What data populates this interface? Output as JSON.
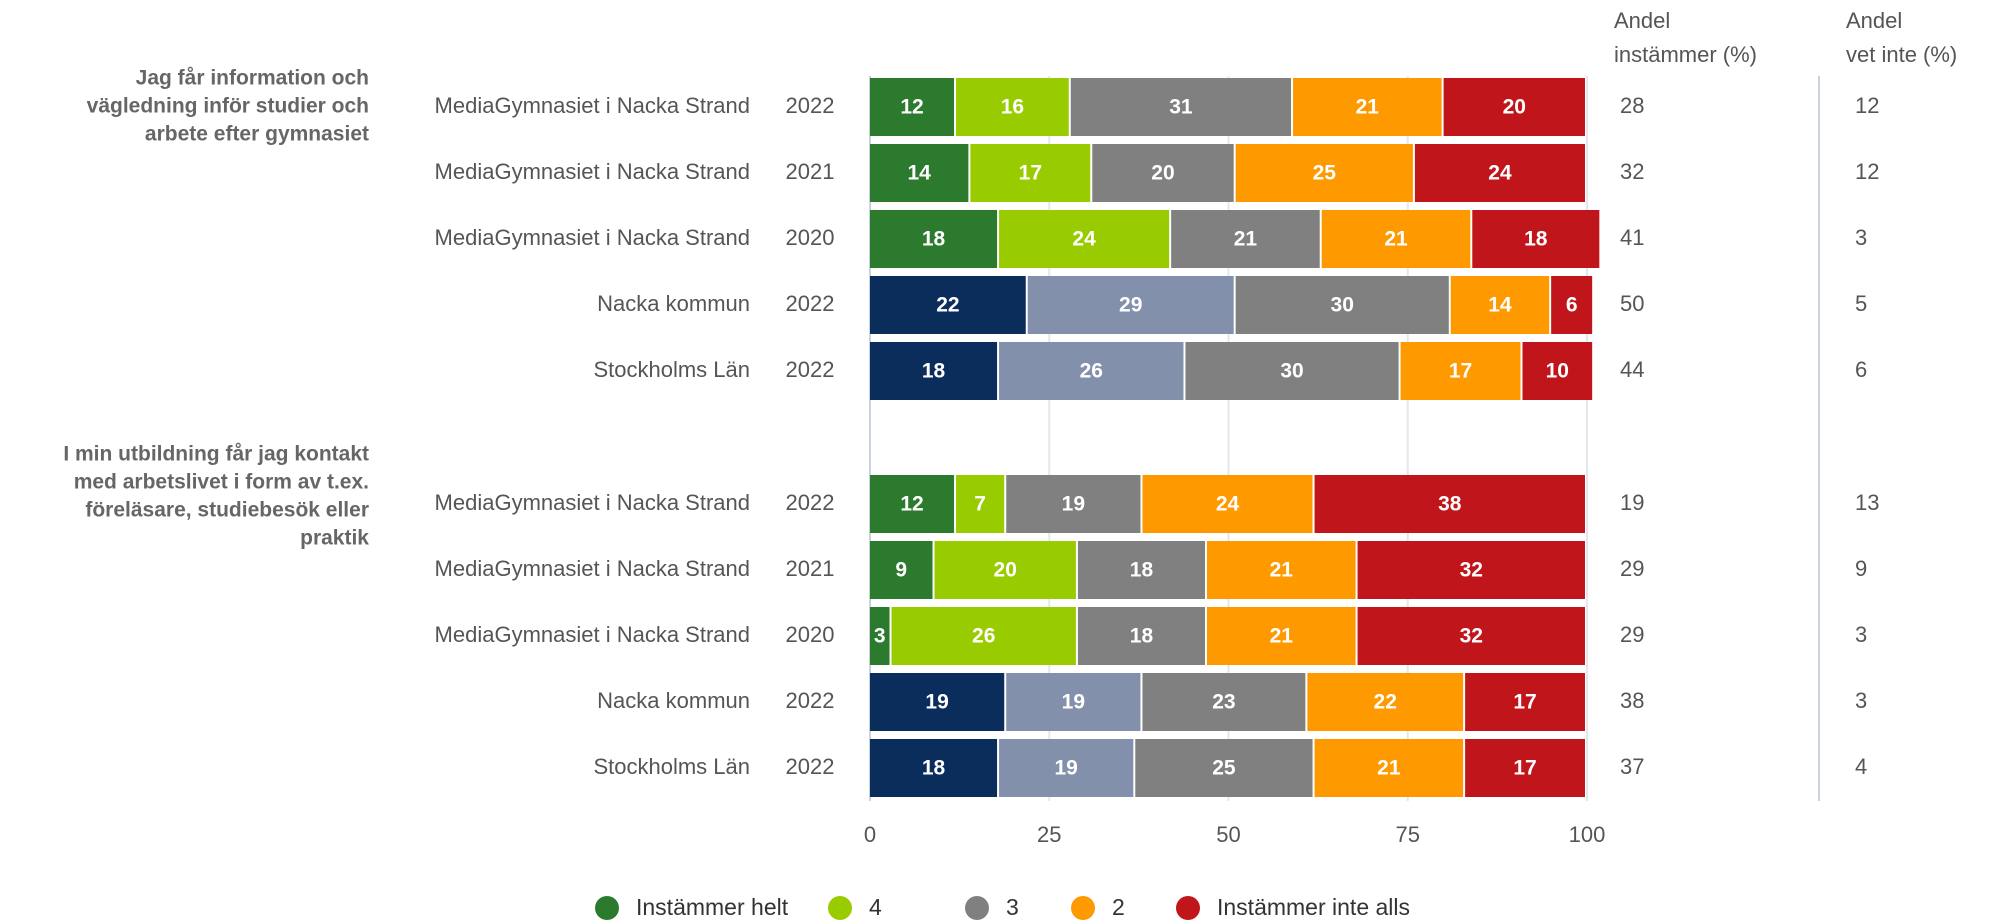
{
  "chart_data": {
    "type": "stacked-bar",
    "xlim": [
      0,
      100
    ],
    "xticks": [
      0,
      25,
      50,
      75,
      100
    ],
    "grid": true,
    "column_headers": [
      [
        "Andel",
        "instämmer (%)"
      ],
      [
        "Andel",
        "vet inte (%)"
      ]
    ],
    "series": [
      {
        "name": "Instämmer helt",
        "color": "#2b7a2e",
        "comparison_color": "#0b2d5c"
      },
      {
        "name": "4",
        "color": "#99cc00",
        "comparison_color": "#8390ac"
      },
      {
        "name": "3",
        "color": "#808080",
        "comparison_color": "#808080"
      },
      {
        "name": "2",
        "color": "#ff9900",
        "comparison_color": "#ff9900"
      },
      {
        "name": "Instämmer inte alls",
        "color": "#c0161b",
        "comparison_color": "#c0161b"
      }
    ],
    "groups": [
      {
        "label_lines": [
          "Jag får information och",
          "vägledning inför studier och",
          "arbete efter gymnasiet"
        ],
        "rows": [
          {
            "name": "MediaGymnasiet i Nacka Strand",
            "year": "2022",
            "comparison": false,
            "values": [
              12,
              16,
              31,
              21,
              20
            ],
            "share_agree": 28,
            "share_unknown": 12
          },
          {
            "name": "MediaGymnasiet i Nacka Strand",
            "year": "2021",
            "comparison": false,
            "values": [
              14,
              17,
              20,
              25,
              24
            ],
            "share_agree": 32,
            "share_unknown": 12
          },
          {
            "name": "MediaGymnasiet i Nacka Strand",
            "year": "2020",
            "comparison": false,
            "values": [
              18,
              24,
              21,
              21,
              18
            ],
            "share_agree": 41,
            "share_unknown": 3
          },
          {
            "name": "Nacka kommun",
            "year": "2022",
            "comparison": true,
            "values": [
              22,
              29,
              30,
              14,
              6
            ],
            "share_agree": 50,
            "share_unknown": 5
          },
          {
            "name": "Stockholms Län",
            "year": "2022",
            "comparison": true,
            "values": [
              18,
              26,
              30,
              17,
              10
            ],
            "share_agree": 44,
            "share_unknown": 6
          }
        ]
      },
      {
        "label_lines": [
          "I min utbildning får jag kontakt",
          "med arbetslivet i form av t.ex.",
          "föreläsare, studiebesök eller",
          "praktik"
        ],
        "rows": [
          {
            "name": "MediaGymnasiet i Nacka Strand",
            "year": "2022",
            "comparison": false,
            "values": [
              12,
              7,
              19,
              24,
              38
            ],
            "share_agree": 19,
            "share_unknown": 13
          },
          {
            "name": "MediaGymnasiet i Nacka Strand",
            "year": "2021",
            "comparison": false,
            "values": [
              9,
              20,
              18,
              21,
              32
            ],
            "share_agree": 29,
            "share_unknown": 9
          },
          {
            "name": "MediaGymnasiet i Nacka Strand",
            "year": "2020",
            "comparison": false,
            "values": [
              3,
              26,
              18,
              21,
              32
            ],
            "share_agree": 29,
            "share_unknown": 3
          },
          {
            "name": "Nacka kommun",
            "year": "2022",
            "comparison": true,
            "values": [
              19,
              19,
              23,
              22,
              17
            ],
            "share_agree": 38,
            "share_unknown": 3
          },
          {
            "name": "Stockholms Län",
            "year": "2022",
            "comparison": true,
            "values": [
              18,
              19,
              25,
              21,
              17
            ],
            "share_agree": 37,
            "share_unknown": 4
          }
        ]
      }
    ]
  }
}
